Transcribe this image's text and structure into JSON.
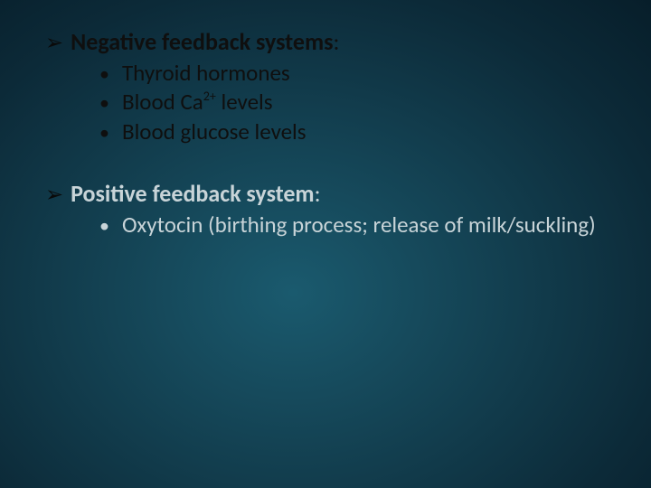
{
  "slide": {
    "background": {
      "type": "radial-gradient",
      "center_color": "#1a5a6e",
      "edge_color": "#071e2a"
    },
    "sections": [
      {
        "bullet_glyph": "➢",
        "bullet_color": "#0a0a0a",
        "heading_text": "Negative feedback systems",
        "heading_color": "#0f0f0f",
        "heading_fontsize": 26,
        "heading_fontweight": 700,
        "colon": ":",
        "items": [
          {
            "dot": "•",
            "text_pre": "Thyroid hormones",
            "sup": "",
            "text_post": "",
            "color": "#0f0f0f",
            "fontsize": 25
          },
          {
            "dot": "•",
            "text_pre": "Blood Ca",
            "sup": "2+",
            "text_post": " levels",
            "color": "#0f0f0f",
            "fontsize": 25
          },
          {
            "dot": "•",
            "text_pre": "Blood glucose levels",
            "sup": "",
            "text_post": "",
            "color": "#0f0f0f",
            "fontsize": 25
          }
        ]
      },
      {
        "bullet_glyph": "➢",
        "bullet_color": "#0a0a0a",
        "heading_text": "Positive feedback system",
        "heading_color": "#c8d4d8",
        "heading_fontsize": 26,
        "heading_fontweight": 700,
        "colon": ":",
        "items": [
          {
            "dot": "•",
            "text_pre": "Oxytocin (birthing process; release of milk/suckling)",
            "sup": "",
            "text_post": "",
            "color": "#c8d4d8",
            "fontsize": 25
          }
        ]
      }
    ]
  }
}
